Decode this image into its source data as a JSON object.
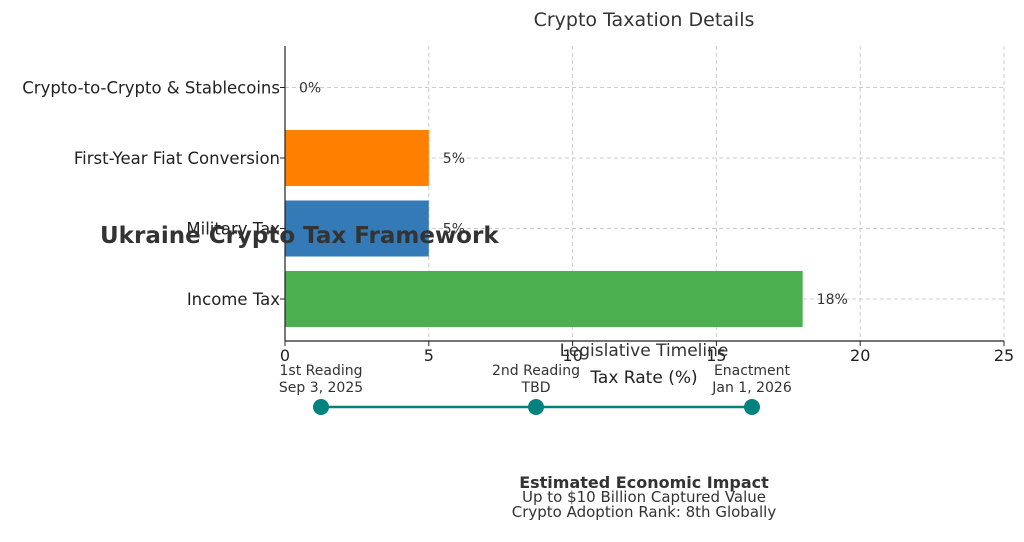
{
  "chart_data": {
    "type": "bar",
    "orientation": "horizontal",
    "title": "Crypto Taxation Details",
    "xlabel": "Tax Rate (%)",
    "ylabel": "",
    "xlim": [
      0,
      25
    ],
    "xticks": [
      "0",
      "5",
      "10",
      "15",
      "20",
      "25"
    ],
    "grid": true,
    "categories": [
      "Income Tax",
      "Military Tax",
      "First-Year Fiat Conversion",
      "Crypto-to-Crypto & Stablecoins"
    ],
    "values": [
      18,
      5,
      5,
      0
    ],
    "value_labels": [
      "18%",
      "5%",
      "5%",
      "0%"
    ],
    "colors": [
      "#4caf50",
      "#337ab7",
      "#ff7f00",
      "#e0e0e0"
    ]
  },
  "overlay_title": "Ukraine Crypto Tax Framework",
  "timeline": {
    "title": "Legislative Timeline",
    "color": "#00827f",
    "events": [
      {
        "name": "1st Reading",
        "date": "Sep 3, 2025"
      },
      {
        "name": "2nd Reading",
        "date": "TBD"
      },
      {
        "name": "Enactment",
        "date": "Jan 1, 2026"
      }
    ]
  },
  "impact": {
    "title": "Estimated Economic Impact",
    "line1": "Up to $10 Billion Captured Value",
    "line2": "Crypto Adoption Rank: 8th Globally"
  }
}
